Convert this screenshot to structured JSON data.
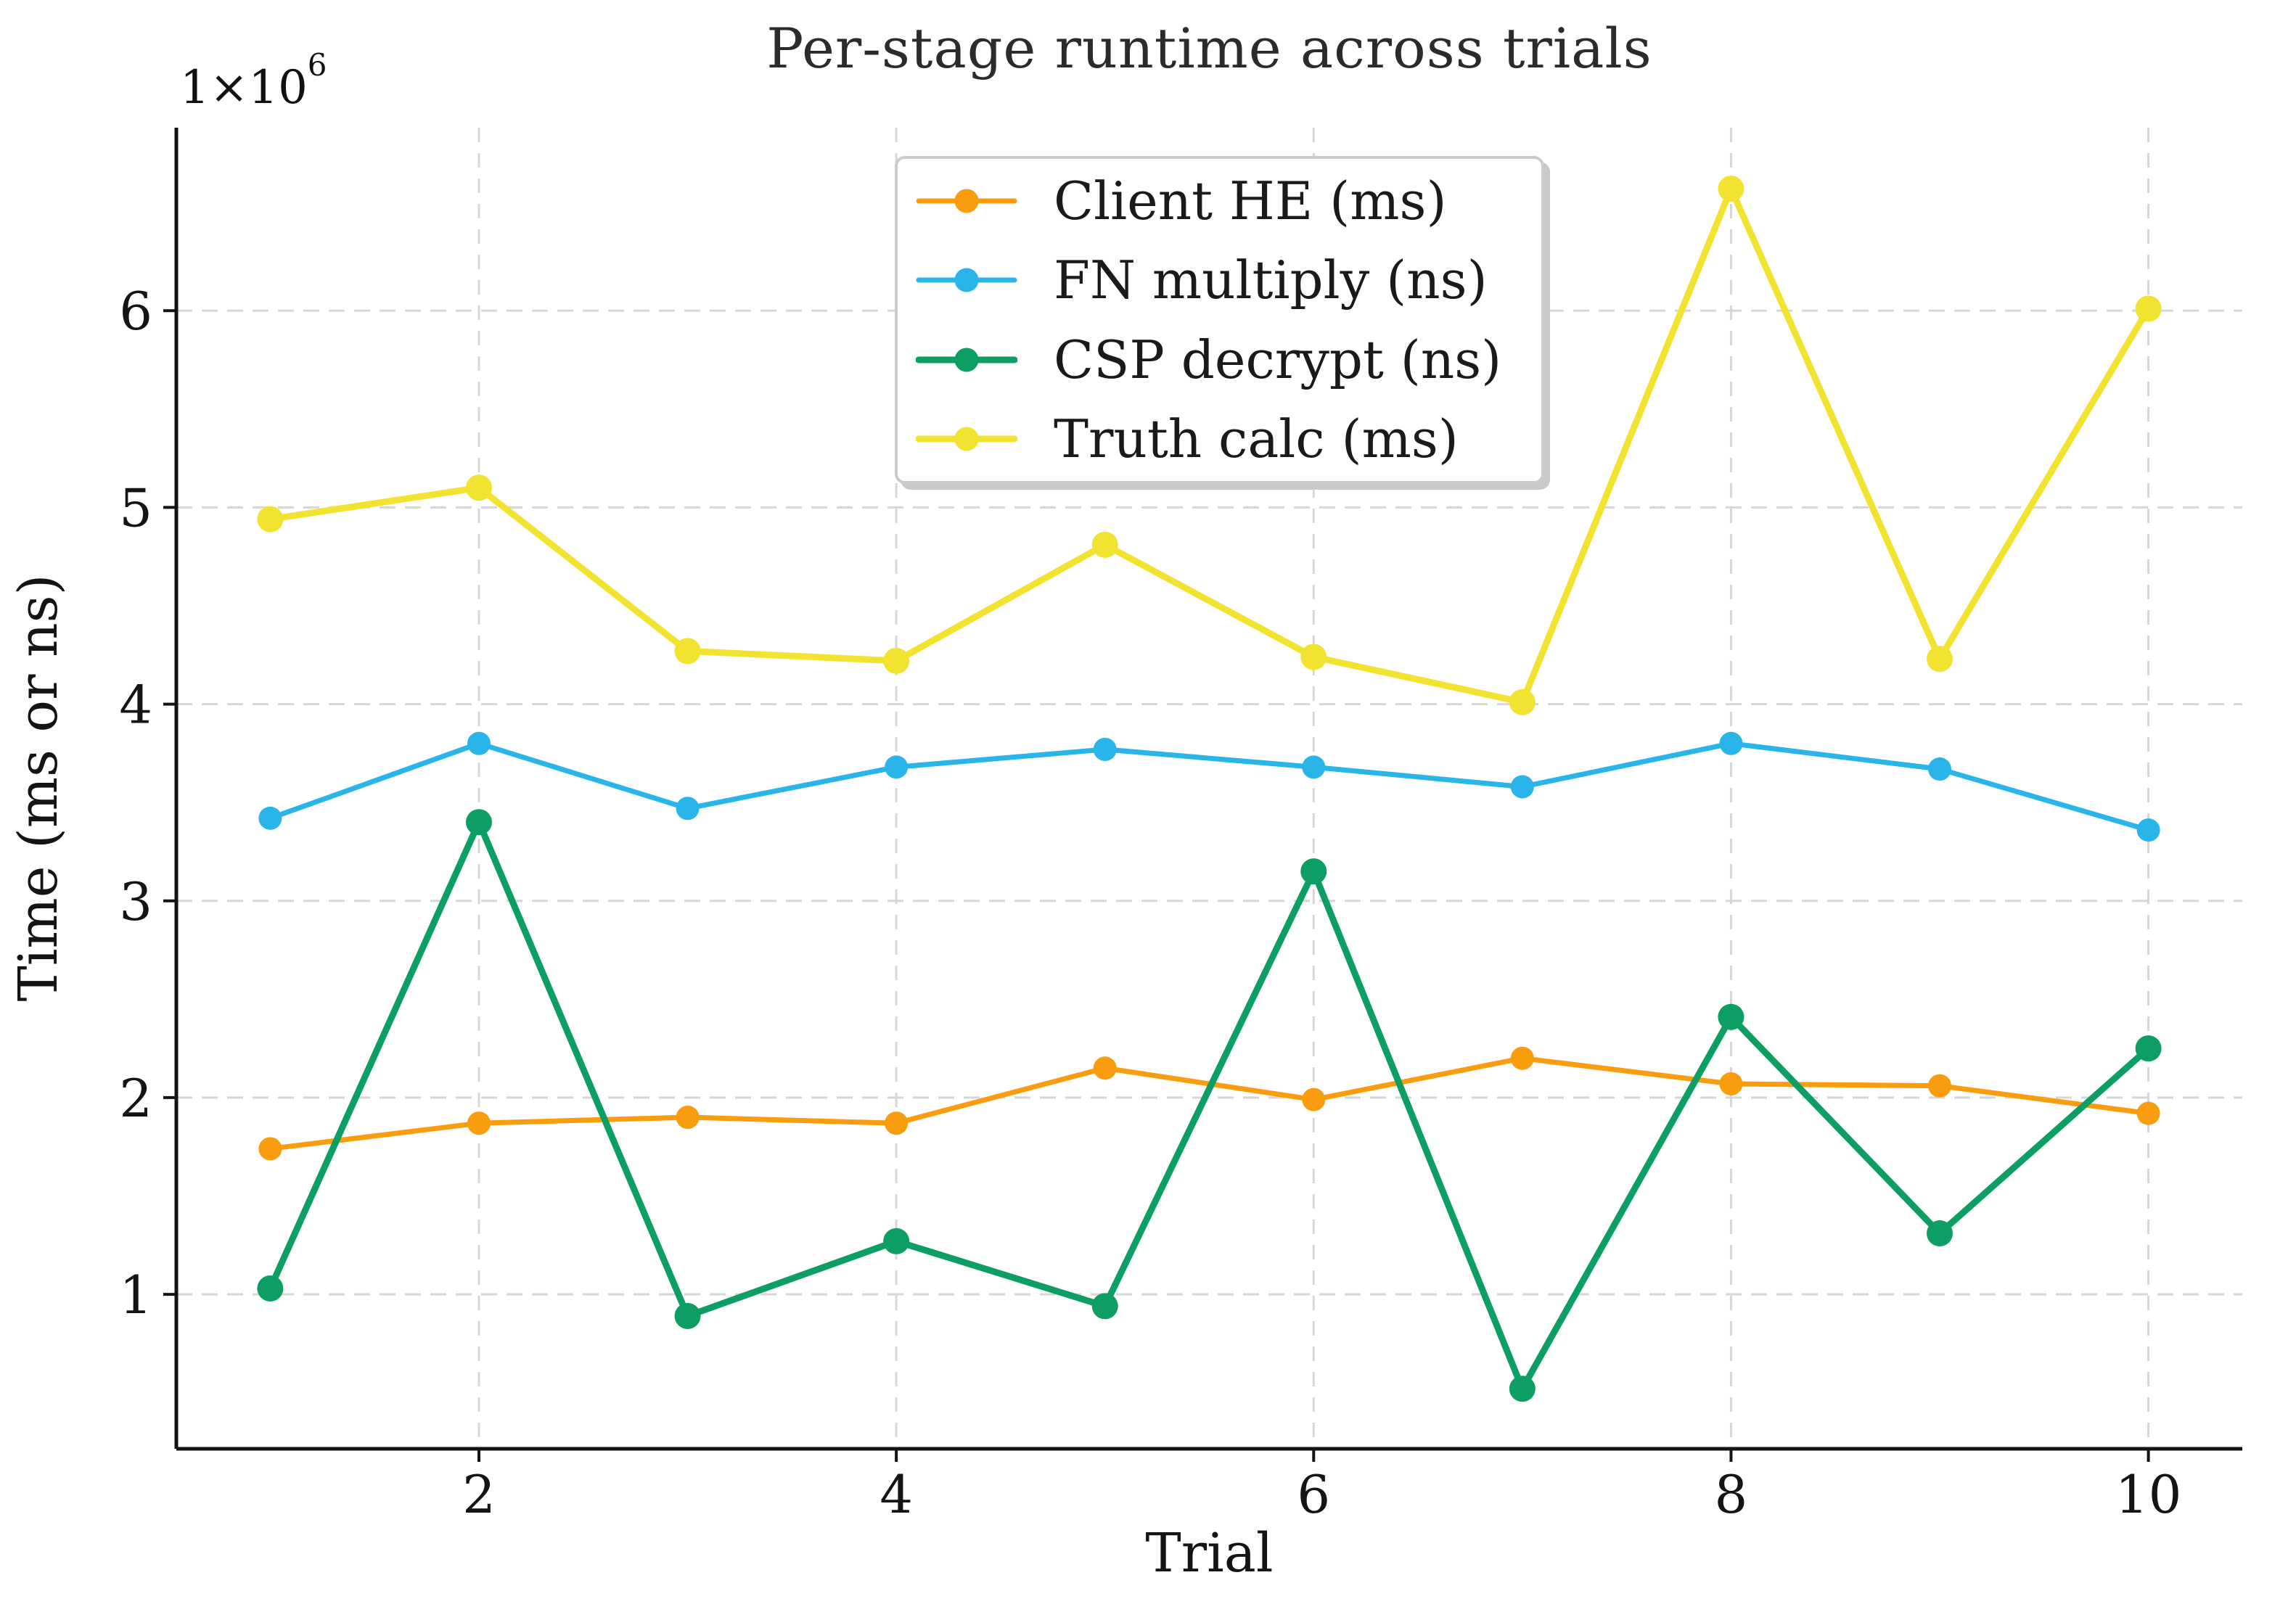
{
  "figure": {
    "title": "Per-stage runtime across trials",
    "offset_base": "1×10",
    "offset_exponent": "6",
    "xlabel": "Trial",
    "ylabel": "Time (ms or ns)"
  },
  "chart_data": {
    "type": "line",
    "title": "Per-stage runtime across trials",
    "xlabel": "Trial",
    "ylabel": "Time (ms or ns)",
    "x": [
      1,
      2,
      3,
      4,
      5,
      6,
      7,
      8,
      9,
      10
    ],
    "series": [
      {
        "name": "Client HE (ms)",
        "color": "#F99C0E",
        "values": [
          1740000,
          1870000,
          1900000,
          1870000,
          2150000,
          1990000,
          2200000,
          2070000,
          2060000,
          1920000
        ]
      },
      {
        "name": "FN multiply (ns)",
        "color": "#29B4EA",
        "values": [
          3420000,
          3800000,
          3470000,
          3680000,
          3770000,
          3680000,
          3580000,
          3800000,
          3670000,
          3360000
        ]
      },
      {
        "name": "CSP decrypt (ns)",
        "color": "#0D9E63",
        "values": [
          1030000,
          3400000,
          890000,
          1270000,
          940000,
          3150000,
          520000,
          2410000,
          1310000,
          2250000
        ]
      },
      {
        "name": "Truth calc (ms)",
        "color": "#F2E331",
        "values": [
          4940000,
          5100000,
          4270000,
          4220000,
          4810000,
          4240000,
          4010000,
          6620000,
          4230000,
          6010000
        ]
      }
    ],
    "xlim": [
      0.55,
      10.45
    ],
    "ylim": [
      215000,
      6930000
    ],
    "xticks": [
      2,
      4,
      6,
      8,
      10
    ],
    "xtick_labels": [
      "2",
      "4",
      "6",
      "8",
      "10"
    ],
    "yticks": [
      1000000,
      2000000,
      3000000,
      4000000,
      5000000,
      6000000
    ],
    "ytick_labels": [
      "1",
      "2",
      "3",
      "4",
      "5",
      "6"
    ],
    "y_axis_offset_text": "1×10⁶",
    "grid": true,
    "grid_color": "#d6d6d6",
    "legend_position": "upper center"
  }
}
